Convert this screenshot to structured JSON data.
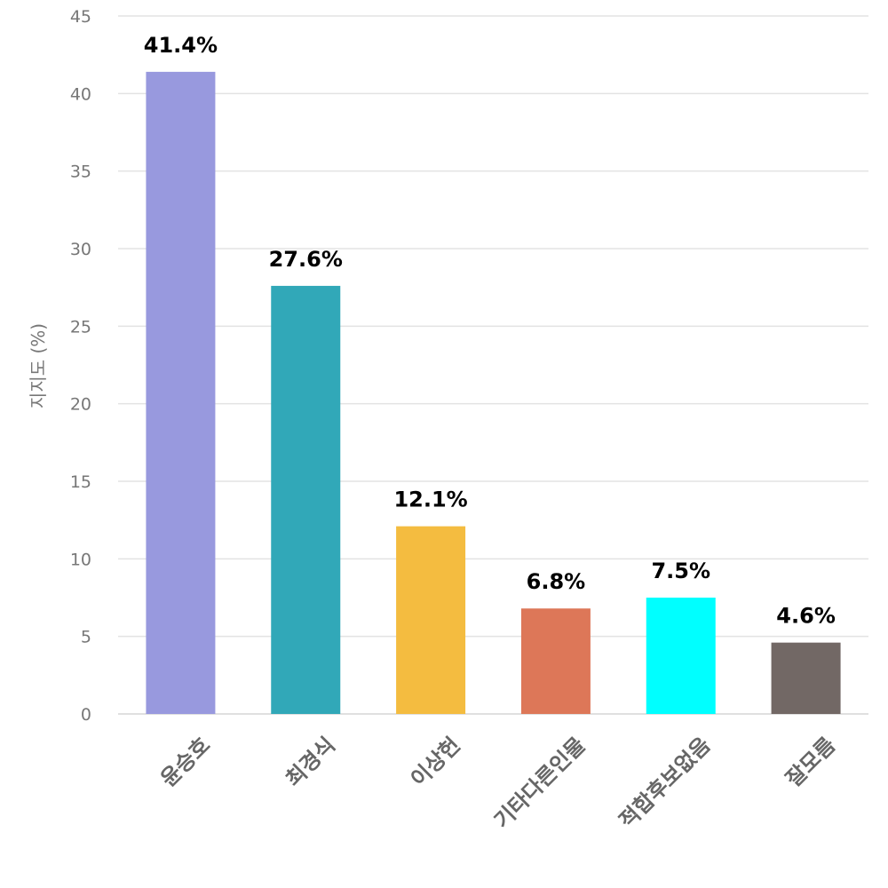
{
  "chart_data": {
    "type": "bar",
    "title": "",
    "xlabel": "",
    "ylabel": "지지도 (%)",
    "ylim": [
      0,
      45
    ],
    "yticks": [
      0,
      5,
      10,
      15,
      20,
      25,
      30,
      35,
      40,
      45
    ],
    "grid": true,
    "legend": "none",
    "categories": [
      "윤승호",
      "최경식",
      "이상헌",
      "기타다른인물",
      "적합후보없음",
      "잘모름"
    ],
    "values": [
      41.4,
      27.6,
      12.1,
      6.8,
      7.5,
      4.6
    ],
    "data_labels": [
      "41.4%",
      "27.6%",
      "12.1%",
      "6.8%",
      "7.5%",
      "4.6%"
    ],
    "colors": [
      "#9899de",
      "#31a8b8",
      "#f4bc40",
      "#dd7758",
      "#00ffff",
      "#726865"
    ]
  }
}
